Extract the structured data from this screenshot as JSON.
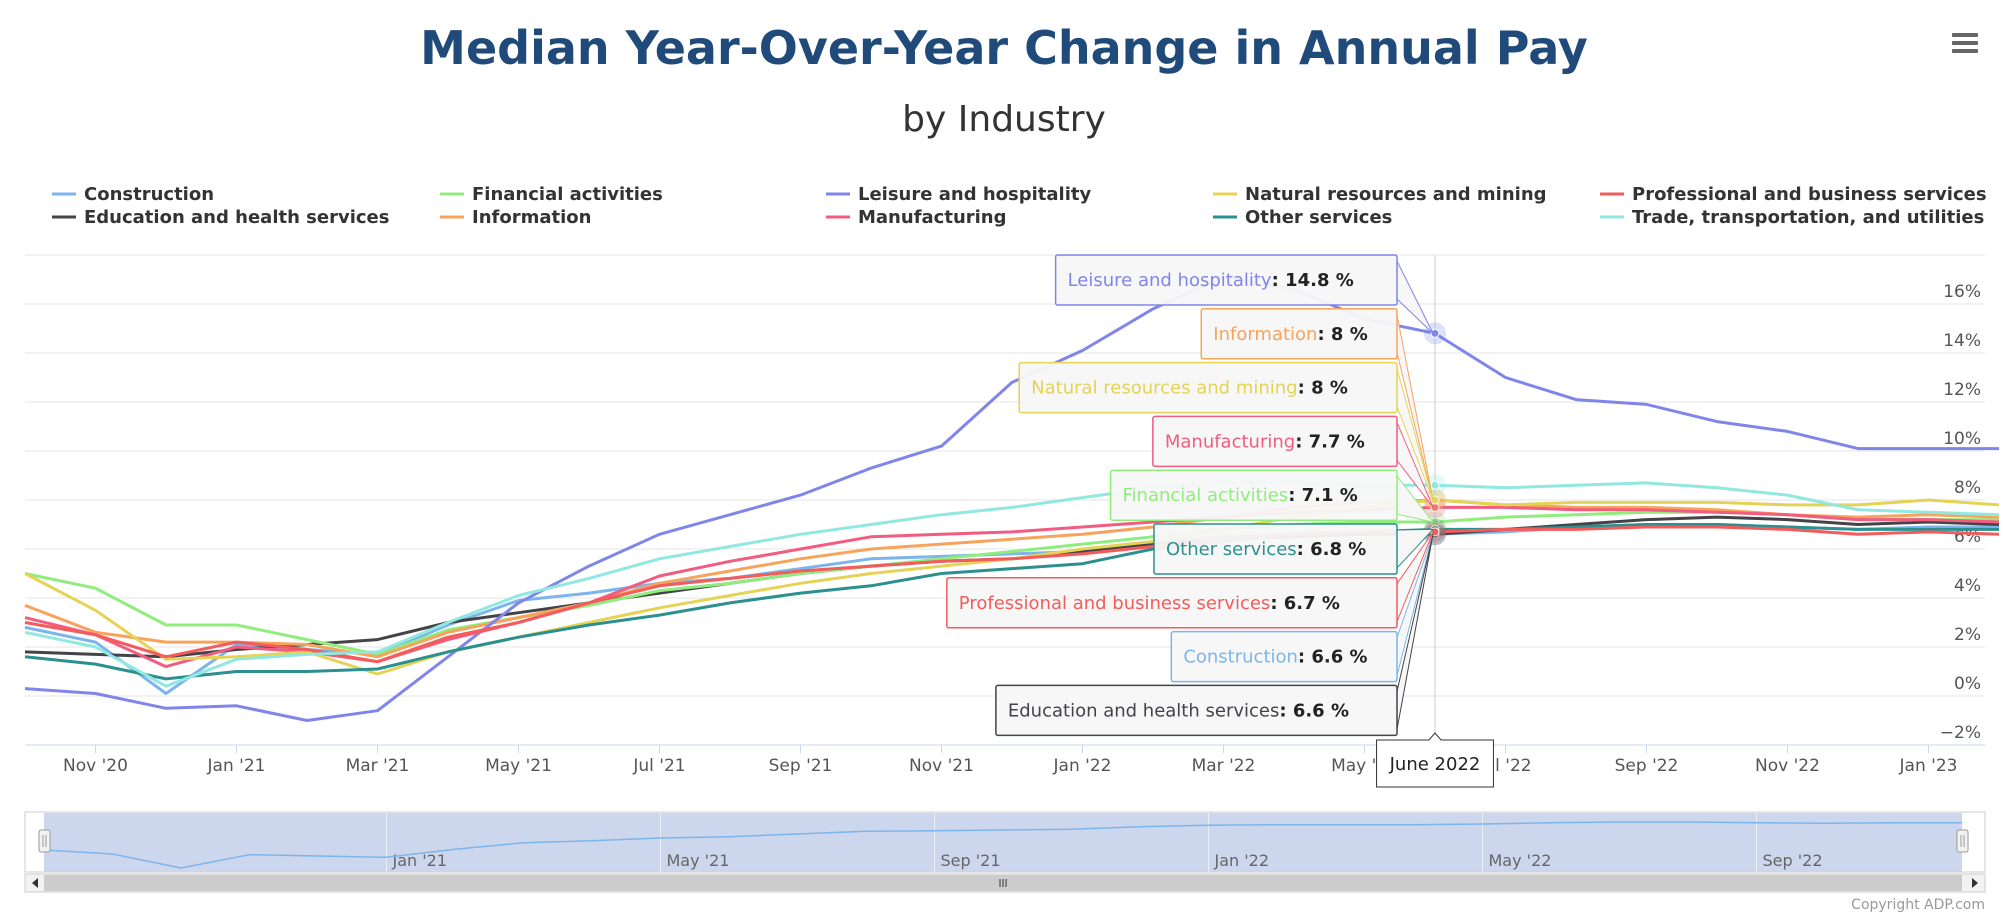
{
  "menu": {
    "icon": "hamburger-menu-icon"
  },
  "copyright": "Copyright ADP.com",
  "chart_data": {
    "type": "line",
    "title": "Median Year-Over-Year Change in Annual Pay",
    "subtitle": "by Industry",
    "legend_position": "top",
    "grid": true,
    "y_axis_side": "right",
    "x_labels": [
      "Nov '20",
      "Jan '21",
      "Mar '21",
      "May '21",
      "Jul '21",
      "Sep '21",
      "Nov '21",
      "Jan '22",
      "Mar '22",
      "May '22",
      "Jul '22",
      "Sep '22",
      "Nov '22",
      "Jan '23"
    ],
    "x": [
      "Oct 2020",
      "Nov 2020",
      "Dec 2020",
      "Jan 2021",
      "Feb 2021",
      "Mar 2021",
      "Apr 2021",
      "May 2021",
      "Jun 2021",
      "Jul 2021",
      "Aug 2021",
      "Sep 2021",
      "Oct 2021",
      "Nov 2021",
      "Dec 2021",
      "Jan 2022",
      "Feb 2022",
      "Mar 2022",
      "Apr 2022",
      "May 2022",
      "Jun 2022",
      "Jul 2022",
      "Aug 2022",
      "Sep 2022",
      "Oct 2022",
      "Nov 2022",
      "Dec 2022",
      "Jan 2023",
      "Feb 2023"
    ],
    "y_ticks": [
      "−2%",
      "0%",
      "2%",
      "4%",
      "6%",
      "8%",
      "10%",
      "12%",
      "14%",
      "16%"
    ],
    "ylim": [
      -2,
      18
    ],
    "hover": {
      "label": "June 2022",
      "index": 20
    },
    "series": [
      {
        "name": "Construction",
        "color": "#7cb5ec",
        "values": [
          2.8,
          2.2,
          0.1,
          2.1,
          1.9,
          1.7,
          2.9,
          3.9,
          4.2,
          4.6,
          4.8,
          5.2,
          5.6,
          5.7,
          5.8,
          5.9,
          6.3,
          6.5,
          6.6,
          6.6,
          6.6,
          6.7,
          6.9,
          7.0,
          7.0,
          6.9,
          6.8,
          6.9,
          6.9
        ]
      },
      {
        "name": "Education and health services",
        "color": "#434348",
        "values": [
          1.8,
          1.7,
          1.6,
          1.9,
          2.1,
          2.3,
          3.0,
          3.4,
          3.8,
          4.2,
          4.6,
          5.0,
          5.3,
          5.5,
          5.6,
          5.9,
          6.2,
          6.4,
          6.5,
          6.6,
          6.6,
          6.8,
          7.0,
          7.2,
          7.3,
          7.2,
          7.0,
          7.1,
          7.0
        ]
      },
      {
        "name": "Financial activities",
        "color": "#90ed7d",
        "values": [
          5.0,
          4.4,
          2.9,
          2.9,
          2.3,
          1.7,
          2.7,
          3.2,
          3.7,
          4.3,
          4.6,
          5.0,
          5.3,
          5.6,
          5.9,
          6.2,
          6.5,
          6.8,
          7.0,
          7.1,
          7.1,
          7.3,
          7.4,
          7.5,
          7.5,
          7.4,
          7.2,
          7.2,
          7.2
        ]
      },
      {
        "name": "Information",
        "color": "#f7a35c",
        "values": [
          3.7,
          2.6,
          2.2,
          2.2,
          2.1,
          1.6,
          2.6,
          3.2,
          3.8,
          4.6,
          5.1,
          5.6,
          6.0,
          6.2,
          6.4,
          6.6,
          6.9,
          7.3,
          7.7,
          7.9,
          8.0,
          7.8,
          7.7,
          7.7,
          7.6,
          7.4,
          7.3,
          7.4,
          7.3
        ]
      },
      {
        "name": "Leisure and hospitality",
        "color": "#8085e9",
        "values": [
          0.3,
          0.1,
          -0.5,
          -0.4,
          -1.0,
          -0.6,
          1.6,
          3.8,
          5.3,
          6.6,
          7.4,
          8.2,
          9.3,
          10.2,
          12.8,
          14.1,
          15.8,
          17.1,
          16.6,
          15.4,
          14.8,
          13.0,
          12.1,
          11.9,
          11.2,
          10.8,
          10.1,
          10.1,
          10.1
        ]
      },
      {
        "name": "Manufacturing",
        "color": "#f15c80",
        "values": [
          3.2,
          2.5,
          1.2,
          2.0,
          1.8,
          1.4,
          2.3,
          3.0,
          3.8,
          4.9,
          5.5,
          6.0,
          6.5,
          6.6,
          6.7,
          6.9,
          7.1,
          7.3,
          7.5,
          7.6,
          7.7,
          7.7,
          7.6,
          7.6,
          7.5,
          7.4,
          7.2,
          7.2,
          7.1
        ]
      },
      {
        "name": "Natural resources and mining",
        "color": "#e4d354",
        "values": [
          5.0,
          3.5,
          1.5,
          1.6,
          1.8,
          0.9,
          1.8,
          2.4,
          3.0,
          3.6,
          4.1,
          4.6,
          5.0,
          5.3,
          5.6,
          6.0,
          6.3,
          6.8,
          7.3,
          7.7,
          8.0,
          7.8,
          7.9,
          7.9,
          7.9,
          7.8,
          7.8,
          8.0,
          7.8
        ]
      },
      {
        "name": "Other services",
        "color": "#2b908f",
        "values": [
          1.6,
          1.3,
          0.7,
          1.0,
          1.0,
          1.1,
          1.8,
          2.4,
          2.9,
          3.3,
          3.8,
          4.2,
          4.5,
          5.0,
          5.2,
          5.4,
          6.0,
          6.3,
          6.6,
          6.7,
          6.8,
          6.8,
          6.9,
          7.0,
          7.0,
          6.9,
          6.8,
          6.8,
          6.8
        ]
      },
      {
        "name": "Professional and business services",
        "color": "#f45b5b",
        "values": [
          3.0,
          2.5,
          1.6,
          2.2,
          1.9,
          1.4,
          2.4,
          3.0,
          3.8,
          4.5,
          4.8,
          5.1,
          5.3,
          5.5,
          5.6,
          5.8,
          6.1,
          6.4,
          6.6,
          6.7,
          6.7,
          6.8,
          6.8,
          6.9,
          6.9,
          6.8,
          6.6,
          6.7,
          6.6
        ]
      },
      {
        "name": "Trade, transportation, and utilities",
        "color": "#91e8e1",
        "values": [
          2.6,
          2.0,
          0.4,
          1.5,
          1.7,
          1.8,
          3.0,
          4.1,
          4.8,
          5.6,
          6.1,
          6.6,
          7.0,
          7.4,
          7.7,
          8.1,
          8.5,
          8.7,
          8.7,
          8.6,
          8.6,
          8.5,
          8.6,
          8.7,
          8.5,
          8.2,
          7.6,
          7.5,
          7.4
        ]
      }
    ]
  }
}
